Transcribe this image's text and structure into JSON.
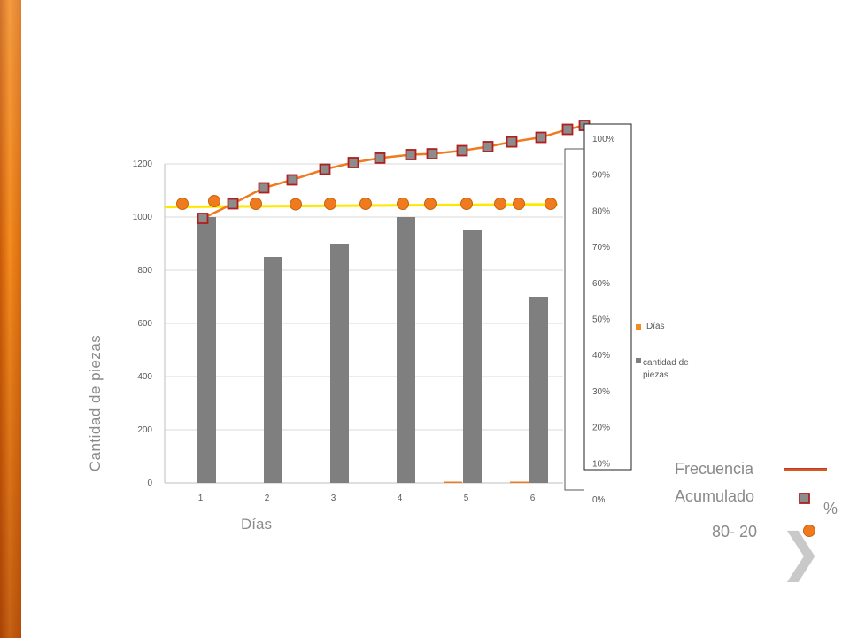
{
  "chart_data": {
    "type": "bar",
    "categories": [
      "1",
      "2",
      "3",
      "4",
      "5",
      "6"
    ],
    "series": [
      {
        "name": "cantidad de piezas",
        "values": [
          1000,
          850,
          900,
          1000,
          950,
          700
        ]
      },
      {
        "name": "Días",
        "values": [
          0,
          0,
          0,
          0,
          5,
          5
        ]
      }
    ],
    "ylim": [
      0,
      1200
    ],
    "yticks": [
      "0",
      "200",
      "400",
      "600",
      "800",
      "1000",
      "1200"
    ],
    "y2ticks": [
      "0%",
      "10%",
      "20%",
      "30%",
      "40%",
      "50%",
      "60%",
      "70%",
      "80%",
      "90%",
      "100%"
    ],
    "ylabel": "Cantidad de piezas",
    "xlabel": "Días",
    "legend": [
      "Días",
      "cantidad de piezas"
    ],
    "cumulative_line": [
      995,
      1050,
      1110,
      1140,
      1180,
      1205,
      1222,
      1235,
      1238,
      1250,
      1265,
      1283,
      1300,
      1330,
      1345
    ],
    "reference_80_20_points": [
      1050,
      1060,
      1050,
      1048,
      1050,
      1050,
      1050,
      1050,
      1050,
      1050,
      1050,
      1050
    ],
    "colors": {
      "bars": "#7f7f7f",
      "cumulative": "#f07b1e",
      "marker_square": "#8c8c8c",
      "marker_border": "#b01e1e",
      "reference": "#ffe800",
      "circle": "#f07b1e"
    }
  },
  "annotations": {
    "frecuencia": "Frecuencia",
    "acumulado": "Acumulado",
    "percent": "%",
    "ratio": "80- 20"
  },
  "nav": {
    "next_icon": "chevron-right-icon",
    "next_glyph": "❯"
  }
}
